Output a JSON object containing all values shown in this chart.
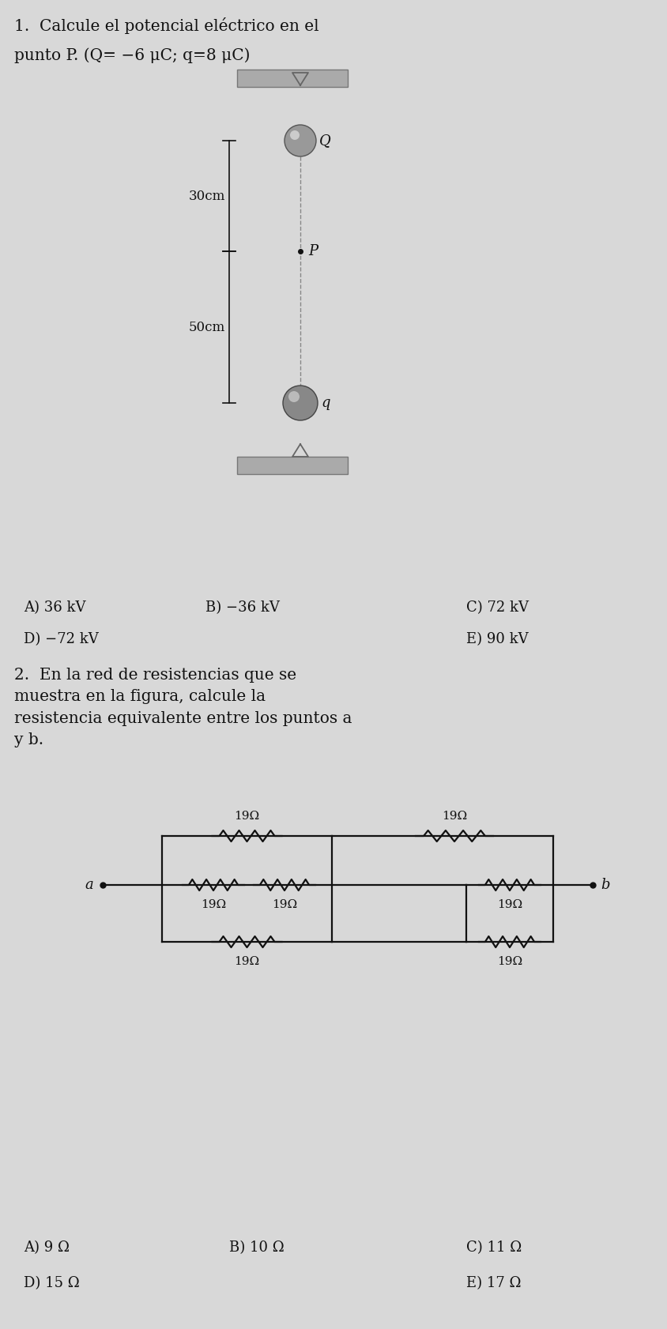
{
  "bg_color": "#d8d8d8",
  "text_color": "#111111",
  "fig_width": 8.44,
  "fig_height": 16.82,
  "q1_title_line1": "1.  Calcule el potencial eléctrico en el",
  "q1_title_line2": "punto P. (Q= −6 μC; q=8 μC)",
  "label_30cm": "30cm",
  "label_50cm": "50cm",
  "label_Q": "Q",
  "label_q": "q",
  "label_P": "P",
  "ans1": [
    [
      "A) 36 kV",
      30,
      760
    ],
    [
      "B) −36 kV",
      260,
      760
    ],
    [
      "C) 72 kV",
      590,
      760
    ],
    [
      "D) −72 kV",
      30,
      800
    ],
    [
      "E) 90 kV",
      590,
      800
    ]
  ],
  "q2_title": "2.  En la red de resistencias que se\nmuestra en la figura, calcule la\nresistencia equivalente entre los puntos a\ny b.",
  "resistor_label": "19Ω",
  "ans2": [
    [
      "A) 9 Ω",
      30,
      1570
    ],
    [
      "B) 10 Ω",
      290,
      1570
    ],
    [
      "C) 11 Ω",
      590,
      1570
    ],
    [
      "D) 15 Ω",
      30,
      1615
    ],
    [
      "E) 17 Ω",
      590,
      1615
    ]
  ]
}
